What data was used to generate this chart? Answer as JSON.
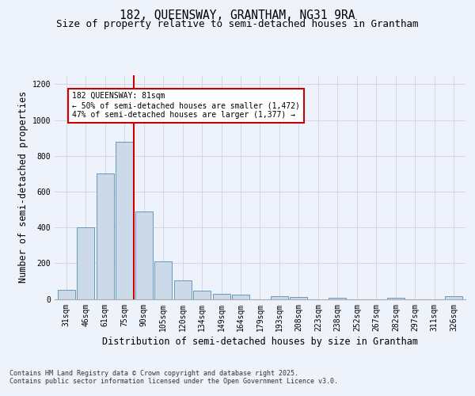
{
  "title1": "182, QUEENSWAY, GRANTHAM, NG31 9RA",
  "title2": "Size of property relative to semi-detached houses in Grantham",
  "xlabel": "Distribution of semi-detached houses by size in Grantham",
  "ylabel": "Number of semi-detached properties",
  "categories": [
    "31sqm",
    "46sqm",
    "61sqm",
    "75sqm",
    "90sqm",
    "105sqm",
    "120sqm",
    "134sqm",
    "149sqm",
    "164sqm",
    "179sqm",
    "193sqm",
    "208sqm",
    "223sqm",
    "238sqm",
    "252sqm",
    "267sqm",
    "282sqm",
    "297sqm",
    "311sqm",
    "326sqm"
  ],
  "values": [
    50,
    400,
    700,
    880,
    490,
    210,
    105,
    48,
    30,
    25,
    0,
    15,
    12,
    0,
    5,
    0,
    0,
    5,
    0,
    0,
    15
  ],
  "bar_color": "#ccd9e8",
  "bar_edge_color": "#6699bb",
  "red_line_x": 3.5,
  "annotation_text": "182 QUEENSWAY: 81sqm\n← 50% of semi-detached houses are smaller (1,472)\n47% of semi-detached houses are larger (1,377) →",
  "annotation_box_color": "#ffffff",
  "annotation_box_edge": "#cc0000",
  "ylim": [
    0,
    1250
  ],
  "yticks": [
    0,
    200,
    400,
    600,
    800,
    1000,
    1200
  ],
  "footnote1": "Contains HM Land Registry data © Crown copyright and database right 2025.",
  "footnote2": "Contains public sector information licensed under the Open Government Licence v3.0.",
  "background_color": "#eef2fb",
  "plot_background": "#eef2fb",
  "grid_color": "#ccccdd",
  "title_fontsize": 10.5,
  "subtitle_fontsize": 9,
  "axis_label_fontsize": 8.5,
  "tick_fontsize": 7,
  "footnote_fontsize": 6
}
